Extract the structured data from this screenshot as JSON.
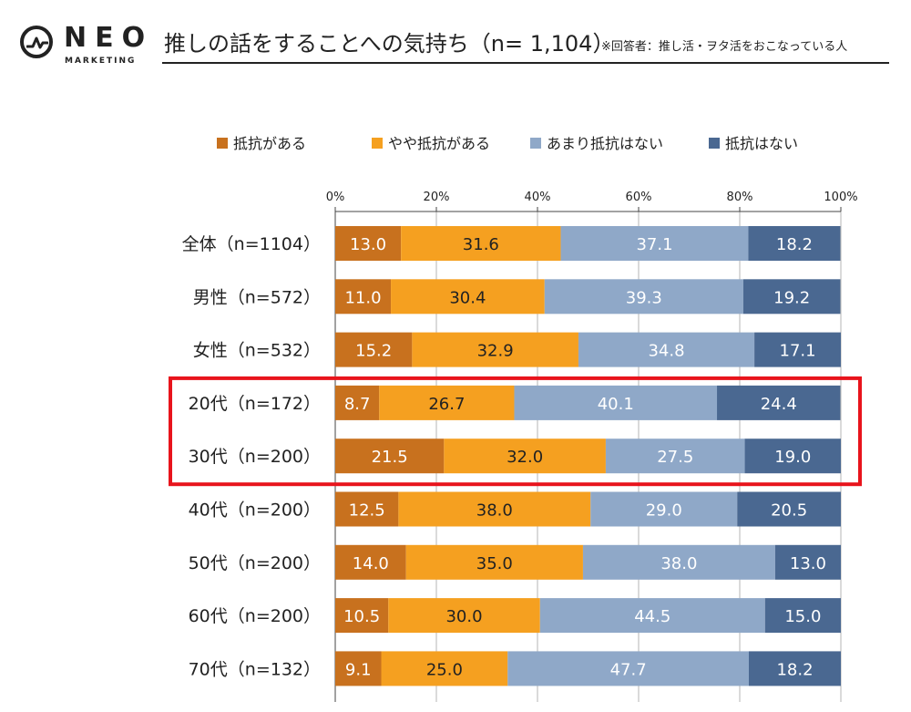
{
  "header": {
    "brand": "NEO",
    "brand_sub": "MARKETING",
    "title": "推しの話をすることへの気持ち（n= 1,104）",
    "note": "※回答者：推し活・ヲタ活をおこなっている人"
  },
  "chart_data": {
    "type": "bar",
    "orientation": "horizontal",
    "stacked": true,
    "xlim": [
      0,
      100
    ],
    "x_ticks": [
      "0%",
      "20%",
      "40%",
      "60%",
      "80%",
      "100%"
    ],
    "legend_position": "top",
    "categories": [
      "全体（n=1104）",
      "男性（n=572）",
      "女性（n=532）",
      "20代（n=172）",
      "30代（n=200）",
      "40代（n=200）",
      "50代（n=200）",
      "60代（n=200）",
      "70代（n=132）"
    ],
    "series": [
      {
        "name": "抵抗がある",
        "color": "#c8711e",
        "values": [
          13.0,
          11.0,
          15.2,
          8.7,
          21.5,
          12.5,
          14.0,
          10.5,
          9.1
        ]
      },
      {
        "name": "やや抵抗がある",
        "color": "#f5a020",
        "values": [
          31.6,
          30.4,
          32.9,
          26.7,
          32.0,
          38.0,
          35.0,
          30.0,
          25.0
        ]
      },
      {
        "name": "あまり抵抗はない",
        "color": "#8fa8c8",
        "values": [
          37.1,
          39.3,
          34.8,
          40.1,
          27.5,
          29.0,
          38.0,
          44.5,
          47.7
        ]
      },
      {
        "name": "抵抗はない",
        "color": "#4a6891",
        "values": [
          18.2,
          19.2,
          17.1,
          24.4,
          19.0,
          20.5,
          13.0,
          15.0,
          18.2
        ]
      }
    ],
    "highlight": {
      "rows": [
        3,
        4
      ],
      "color": "#e8141c"
    }
  }
}
